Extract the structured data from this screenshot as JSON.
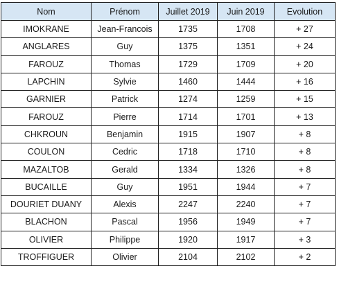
{
  "table": {
    "headers": [
      "Nom",
      "Prénom",
      "Juillet 2019",
      "Juin 2019",
      "Evolution"
    ],
    "rows": [
      [
        "IMOKRANE",
        "Jean-Francois",
        "1735",
        "1708",
        "+ 27"
      ],
      [
        "ANGLARES",
        "Guy",
        "1375",
        "1351",
        "+ 24"
      ],
      [
        "FAROUZ",
        "Thomas",
        "1729",
        "1709",
        "+ 20"
      ],
      [
        "LAPCHIN",
        "Sylvie",
        "1460",
        "1444",
        "+ 16"
      ],
      [
        "GARNIER",
        "Patrick",
        "1274",
        "1259",
        "+ 15"
      ],
      [
        "FAROUZ",
        "Pierre",
        "1714",
        "1701",
        "+ 13"
      ],
      [
        "CHKROUN",
        "Benjamin",
        "1915",
        "1907",
        "+ 8"
      ],
      [
        "COULON",
        "Cedric",
        "1718",
        "1710",
        "+ 8"
      ],
      [
        "MAZALTOB",
        "Gerald",
        "1334",
        "1326",
        "+ 8"
      ],
      [
        "BUCAILLE",
        "Guy",
        "1951",
        "1944",
        "+ 7"
      ],
      [
        "DOURIET DUANY",
        "Alexis",
        "2247",
        "2240",
        "+ 7"
      ],
      [
        "BLACHON",
        "Pascal",
        "1956",
        "1949",
        "+ 7"
      ],
      [
        "OLIVIER",
        "Philippe",
        "1920",
        "1917",
        "+ 3"
      ],
      [
        "TROFFIGUER",
        "Olivier",
        "2104",
        "2102",
        "+ 2"
      ]
    ]
  },
  "colors": {
    "header_background": "#d6e6f4",
    "border": "#1f1f1f",
    "text": "#1a1a1a"
  }
}
